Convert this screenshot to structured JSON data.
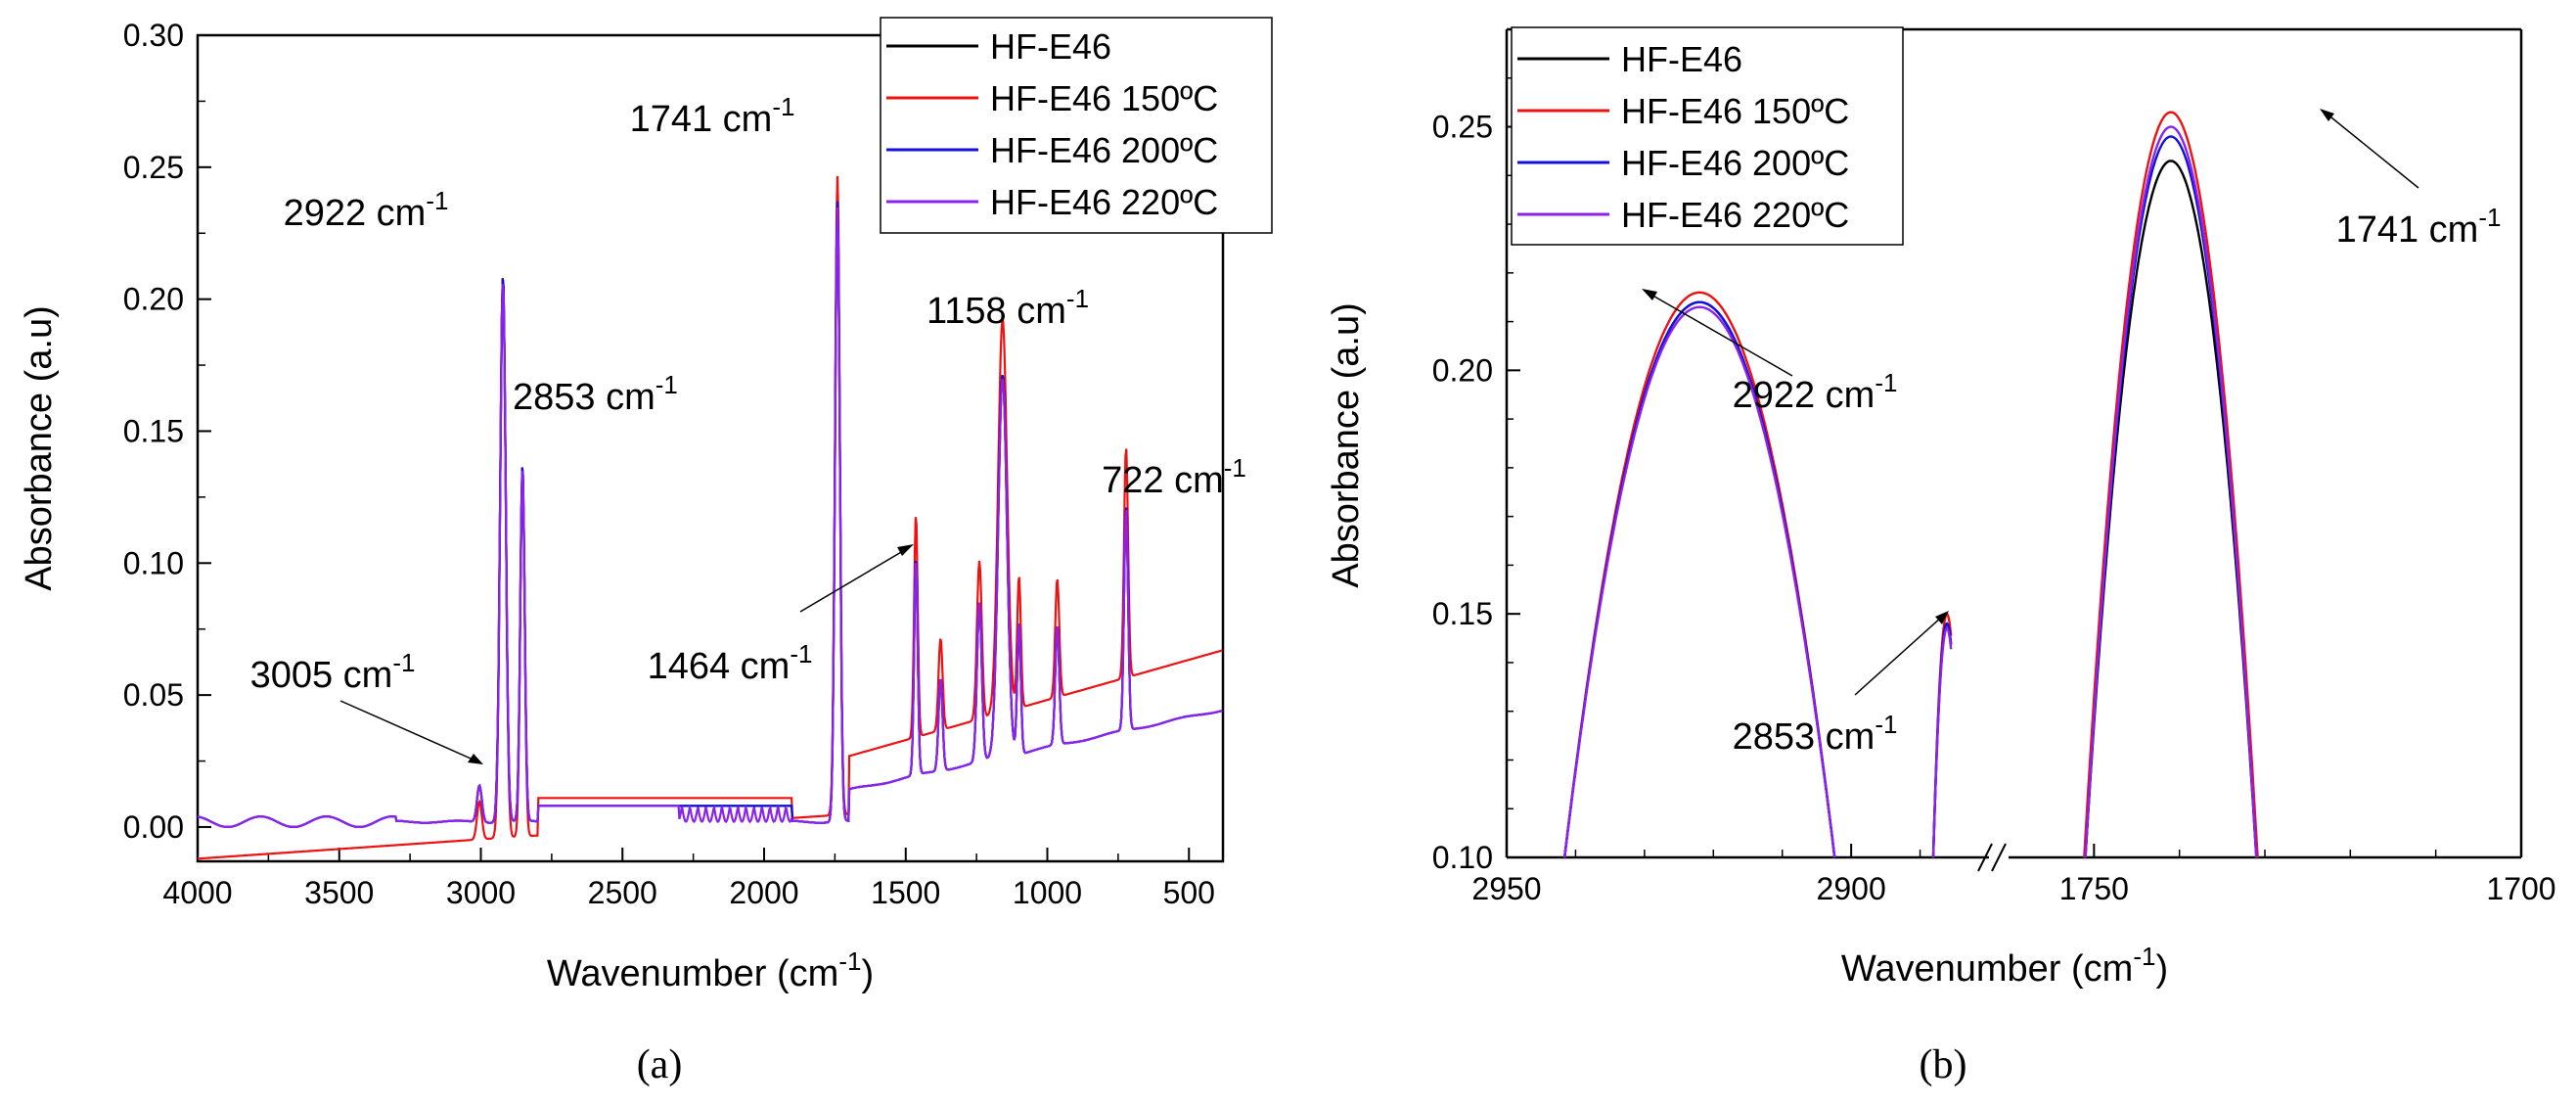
{
  "chart_data": [
    {
      "panel": "a",
      "caption": "(a)",
      "type": "line",
      "title": "",
      "xlabel": "Wavenumber (cm",
      "xlabel_sup": "-1",
      "xlabel_end": ")",
      "ylabel": "Absorbance (a.u)",
      "xlim": [
        4000,
        380
      ],
      "ylim": [
        -0.013,
        0.3
      ],
      "xticks": [
        4000,
        3500,
        3000,
        2500,
        2000,
        1500,
        1000,
        500
      ],
      "xtick_labels": [
        "4000",
        "3500",
        "3000",
        "2500",
        "2000",
        "1500",
        "1000",
        "500"
      ],
      "yticks": [
        0.0,
        0.05,
        0.1,
        0.15,
        0.2,
        0.25,
        0.3
      ],
      "ytick_labels": [
        "0.00",
        "0.05",
        "0.10",
        "0.15",
        "0.20",
        "0.25",
        "0.30"
      ],
      "legend": [
        "HF-E46",
        "HF-E46 150ºC",
        "HF-E46 200ºC",
        "HF-E46 220ºC"
      ],
      "legend_position": "top-right",
      "colors": [
        "#000000",
        "#ee1111",
        "#1111dd",
        "#8b22ee"
      ],
      "peaks": [
        {
          "x": 3005,
          "h": 0.014,
          "w": 12,
          "label": "3005 cm",
          "sup": "-1"
        },
        {
          "x": 2922,
          "h": 0.207,
          "w": 14,
          "label": "2922 cm",
          "sup": "-1"
        },
        {
          "x": 2853,
          "h": 0.135,
          "w": 11,
          "label": "2853 cm",
          "sup": "-1"
        },
        {
          "x": 1741,
          "h": 0.235,
          "w": 12,
          "label": "1741 cm",
          "sup": "-1"
        },
        {
          "x": 1464,
          "h": 0.082,
          "w": 9,
          "label": "1464 cm",
          "sup": "-1"
        },
        {
          "x": 1158,
          "h": 0.145,
          "w": 22,
          "label": "1158 cm",
          "sup": "-1"
        },
        {
          "x": 722,
          "h": 0.085,
          "w": 10,
          "label": "722 cm",
          "sup": "-1"
        }
      ]
    },
    {
      "panel": "b",
      "caption": "(b)",
      "type": "line",
      "title": "",
      "xlabel": "Wavenumber (cm",
      "xlabel_sup": "-1",
      "xlabel_end": ")",
      "ylabel": "Absorbance (a.u)",
      "x_segments": [
        [
          2950,
          2880
        ],
        [
          1760,
          1700
        ]
      ],
      "x_break": "//",
      "ylim": [
        0.1,
        0.27
      ],
      "xtick_labels": [
        "2950",
        "2900",
        "1750",
        "1700"
      ],
      "ytick_labels": [
        "0.10",
        "0.15",
        "0.20",
        "0.25"
      ],
      "yticks": [
        0.1,
        0.15,
        0.2,
        0.25
      ],
      "legend": [
        "HF-E46",
        "HF-E46 150ºC",
        "HF-E46 200ºC",
        "HF-E46 220ºC"
      ],
      "legend_position": "top-left",
      "peak_maxima": {
        "2922": [
          0.214,
          0.216,
          0.214,
          0.213
        ],
        "2853": [
          0.148,
          0.15,
          0.148,
          0.147
        ],
        "1741": [
          0.243,
          0.253,
          0.248,
          0.25
        ]
      },
      "annotations": [
        {
          "label": "2922 cm",
          "sup": "-1"
        },
        {
          "label": "2853 cm",
          "sup": "-1"
        },
        {
          "label": "1741 cm",
          "sup": "-1"
        }
      ]
    }
  ]
}
